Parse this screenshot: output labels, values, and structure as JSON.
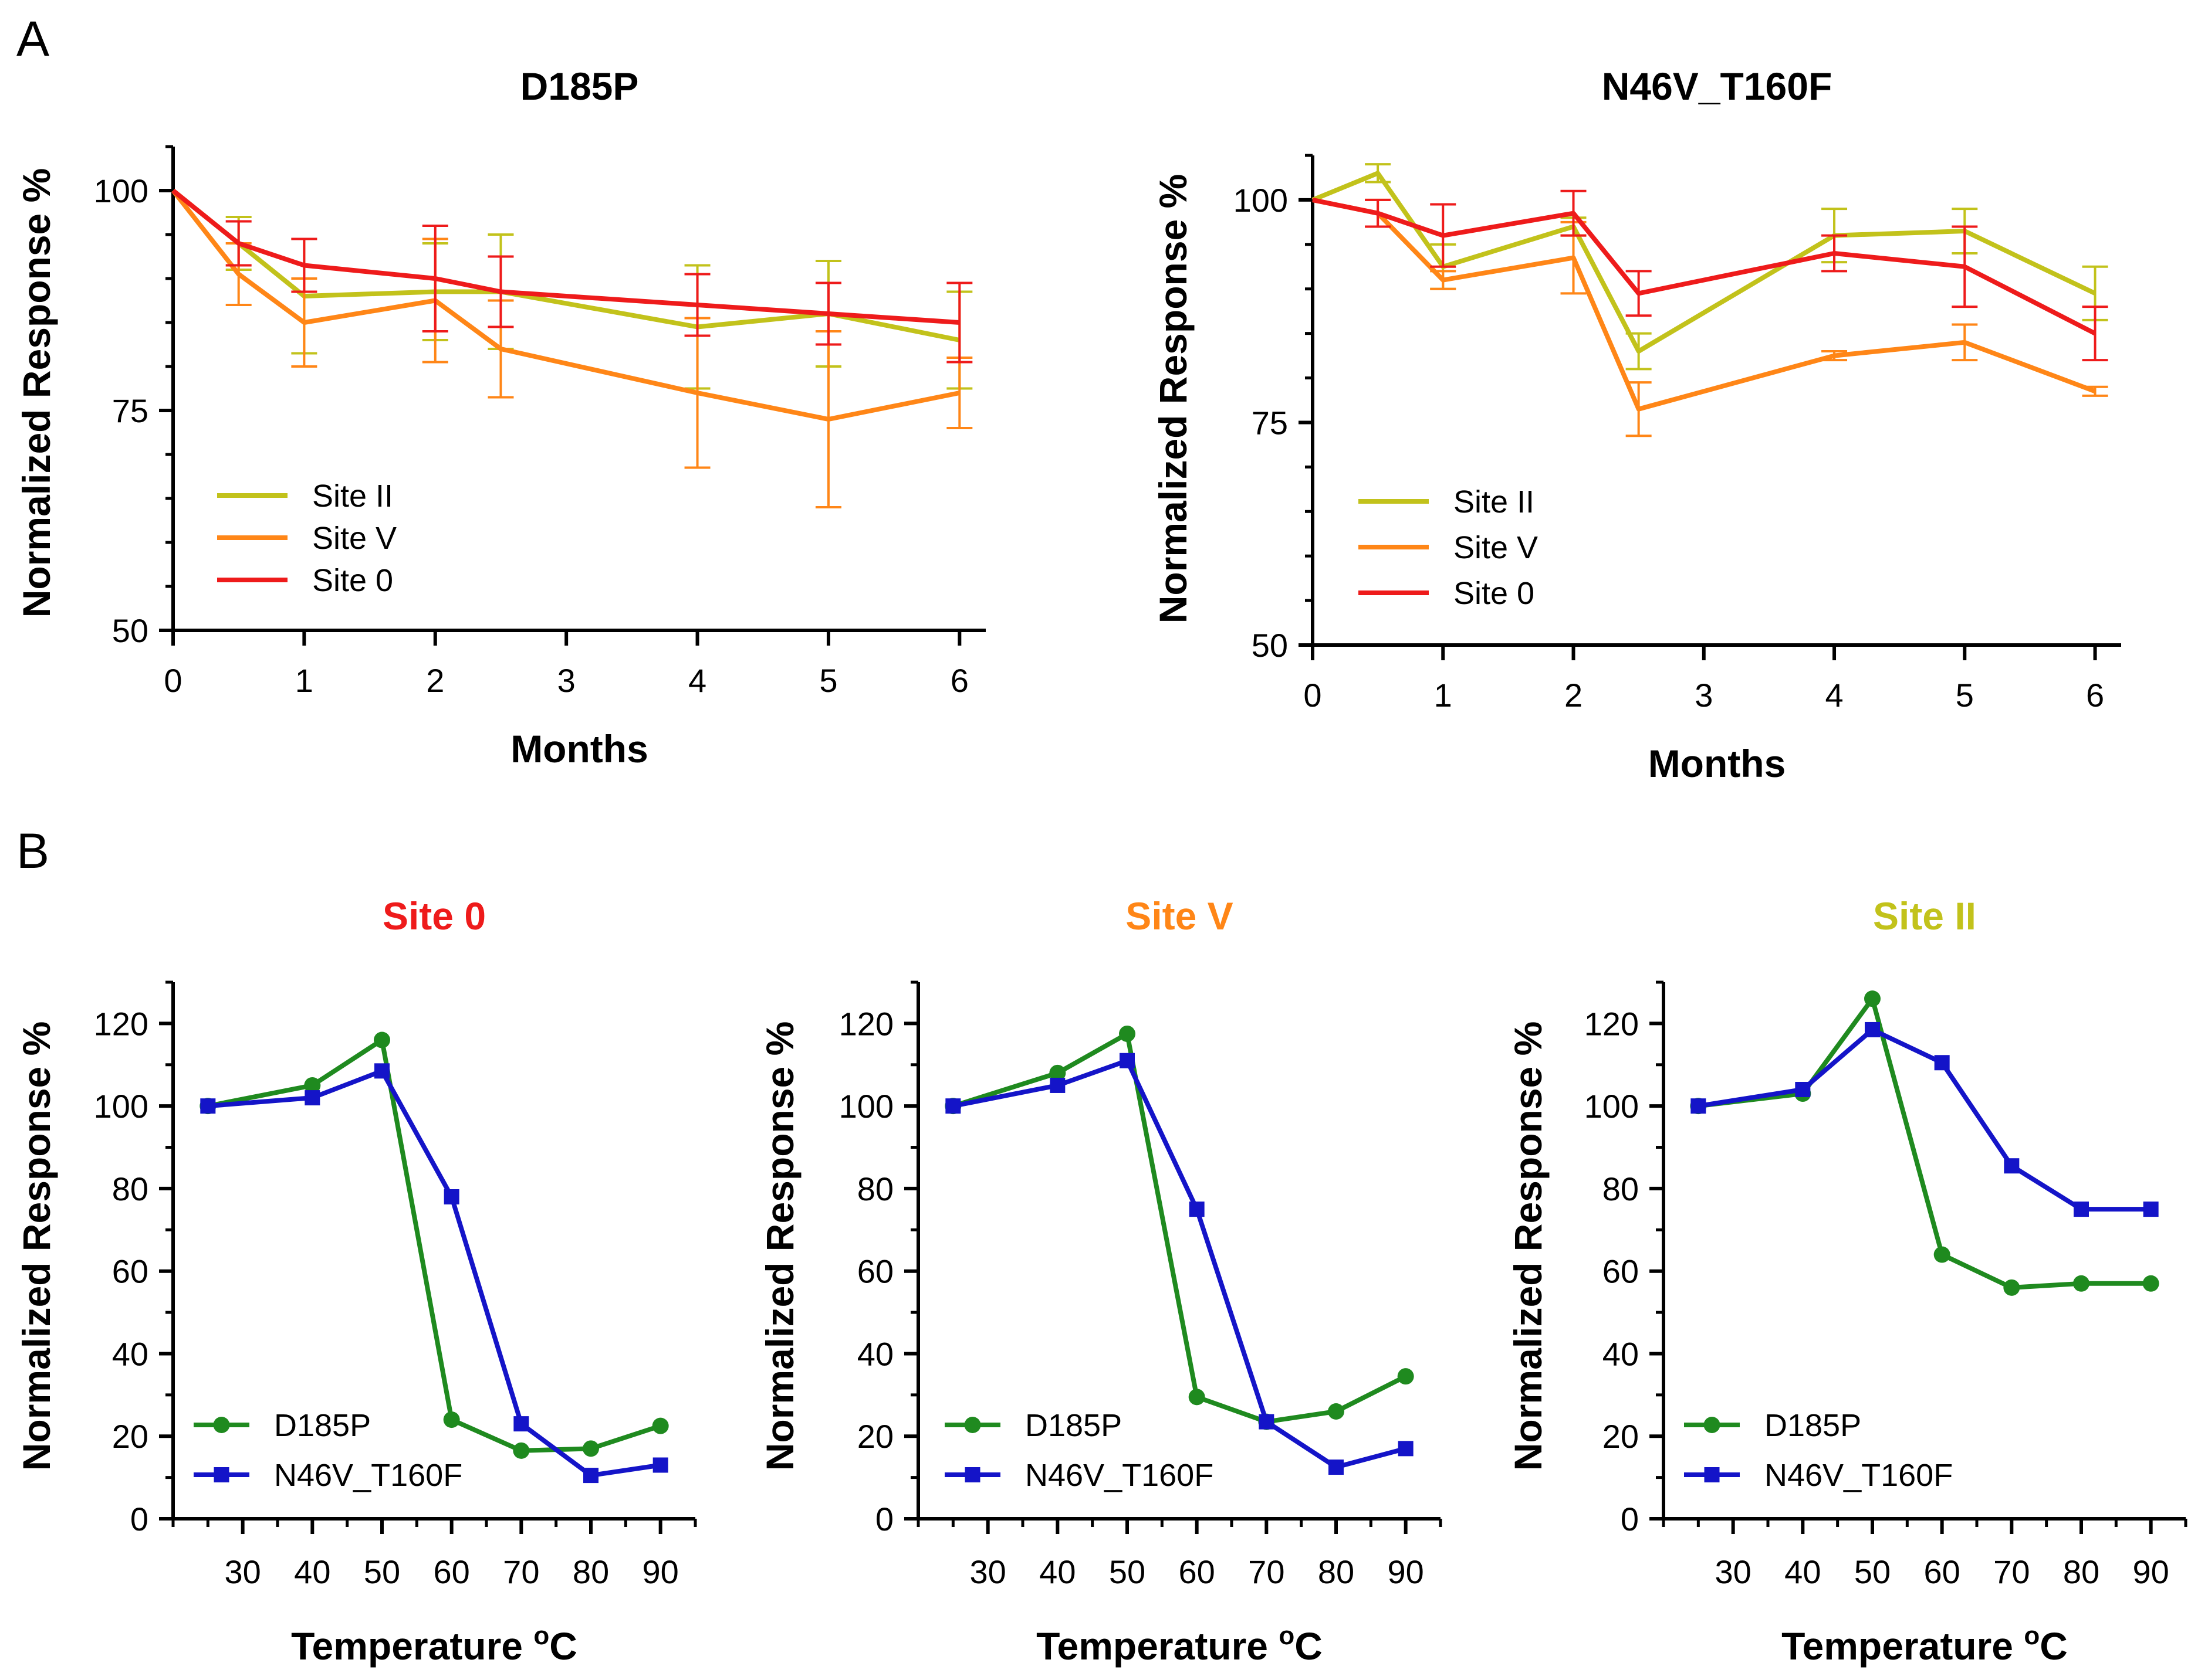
{
  "figure": {
    "panel_labels": [
      "A",
      "B"
    ]
  },
  "chart_data": [
    {
      "type": "line",
      "panel": "A",
      "title": "D185P",
      "xlabel": "Months",
      "ylabel": "Normalized Response %",
      "xlim": [
        0,
        6.2
      ],
      "ylim": [
        50,
        105
      ],
      "xticks": [
        0,
        1,
        2,
        3,
        4,
        5,
        6
      ],
      "yticks": [
        50,
        75,
        100
      ],
      "yminor_step": 5,
      "legend": "bottom-left",
      "series": [
        {
          "name": "Site II",
          "color": "#c2c21b",
          "x": [
            0,
            0.5,
            1,
            2,
            2.5,
            4,
            5,
            6
          ],
          "y": [
            100,
            94,
            88,
            88.5,
            88.5,
            84.5,
            86,
            83
          ],
          "err": [
            0,
            3,
            6.5,
            5.5,
            6.5,
            7,
            6,
            5.5
          ]
        },
        {
          "name": "Site V",
          "color": "#ff8617",
          "x": [
            0,
            0.5,
            1,
            2,
            2.5,
            4,
            5,
            6
          ],
          "y": [
            100,
            90.5,
            85,
            87.5,
            82,
            77,
            74,
            77
          ],
          "err": [
            0,
            3.5,
            5,
            7,
            5.5,
            8.5,
            10,
            4
          ]
        },
        {
          "name": "Site 0",
          "color": "#ee1b1b",
          "x": [
            0,
            0.5,
            1,
            2,
            2.5,
            4,
            5,
            6
          ],
          "y": [
            100,
            94,
            91.5,
            90,
            88.5,
            87,
            86,
            85
          ],
          "err": [
            0,
            2.5,
            3,
            6,
            4,
            3.5,
            3.5,
            4.5
          ]
        }
      ]
    },
    {
      "type": "line",
      "panel": "A",
      "title": "N46V_T160F",
      "xlabel": "Months",
      "ylabel": "Normalized Response %",
      "xlim": [
        0,
        6.2
      ],
      "ylim": [
        50,
        105
      ],
      "xticks": [
        0,
        1,
        2,
        3,
        4,
        5,
        6
      ],
      "yticks": [
        50,
        75,
        100
      ],
      "yminor_step": 5,
      "legend": "bottom-left",
      "series": [
        {
          "name": "Site II",
          "color": "#c2c21b",
          "x": [
            0,
            0.5,
            1,
            2,
            2.5,
            4,
            5,
            6
          ],
          "y": [
            100,
            103,
            92.5,
            97,
            83,
            96,
            96.5,
            89.5
          ],
          "err": [
            0,
            1,
            2.5,
            1,
            2,
            3,
            2.5,
            3
          ]
        },
        {
          "name": "Site V",
          "color": "#ff8617",
          "x": [
            0,
            0.5,
            1,
            2,
            2.5,
            4,
            5,
            6
          ],
          "y": [
            100,
            98.5,
            91,
            93.5,
            76.5,
            82.5,
            84,
            78.5
          ],
          "err": [
            0,
            1.5,
            1,
            4,
            3,
            0.5,
            2,
            0.5
          ]
        },
        {
          "name": "Site 0",
          "color": "#ee1b1b",
          "x": [
            0,
            0.5,
            1,
            2,
            2.5,
            4,
            5,
            6
          ],
          "y": [
            100,
            98.5,
            96,
            98.5,
            89.5,
            94,
            92.5,
            85
          ],
          "err": [
            0,
            1.5,
            3.5,
            2.5,
            2.5,
            2,
            4.5,
            3
          ]
        }
      ]
    },
    {
      "type": "line",
      "panel": "B",
      "title": "Site 0",
      "title_color": "#ee1b1b",
      "xlabel": "Temperature °C",
      "xlabel_main": "Temperature ",
      "xlabel_sup": "o",
      "xlabel_unit": "C",
      "ylabel": "Normalized Response %",
      "xlim": [
        20,
        95
      ],
      "ylim": [
        0,
        130
      ],
      "xticks": [
        30,
        40,
        50,
        60,
        70,
        80,
        90
      ],
      "yticks": [
        0,
        20,
        40,
        60,
        80,
        100,
        120
      ],
      "xminor_step": 5,
      "yminor_step": 10,
      "legend": "bottom-left",
      "series": [
        {
          "name": "D185P",
          "color": "#1f8a1f",
          "marker": "circle",
          "x": [
            25,
            40,
            50,
            60,
            70,
            80,
            90
          ],
          "y": [
            100,
            105,
            116,
            24,
            16.5,
            17,
            22.5
          ]
        },
        {
          "name": "N46V_T160F",
          "color": "#1414c8",
          "marker": "square",
          "x": [
            25,
            40,
            50,
            60,
            70,
            80,
            90
          ],
          "y": [
            100,
            102,
            108.5,
            78,
            23,
            10.5,
            13
          ]
        }
      ]
    },
    {
      "type": "line",
      "panel": "B",
      "title": "Site V",
      "title_color": "#ff8617",
      "xlabel": "Temperature °C",
      "xlabel_main": "Temperature ",
      "xlabel_sup": "o",
      "xlabel_unit": "C",
      "ylabel": "Normalized Response %",
      "xlim": [
        20,
        95
      ],
      "ylim": [
        0,
        130
      ],
      "xticks": [
        30,
        40,
        50,
        60,
        70,
        80,
        90
      ],
      "yticks": [
        0,
        20,
        40,
        60,
        80,
        100,
        120
      ],
      "xminor_step": 5,
      "yminor_step": 10,
      "legend": "bottom-left",
      "series": [
        {
          "name": "D185P",
          "color": "#1f8a1f",
          "marker": "circle",
          "x": [
            25,
            40,
            50,
            60,
            70,
            80,
            90
          ],
          "y": [
            100,
            108,
            117.5,
            29.5,
            23.5,
            26,
            34.5
          ]
        },
        {
          "name": "N46V_T160F",
          "color": "#1414c8",
          "marker": "square",
          "x": [
            25,
            40,
            50,
            60,
            70,
            80,
            90
          ],
          "y": [
            100,
            105,
            111,
            75,
            23.5,
            12.5,
            17
          ]
        }
      ]
    },
    {
      "type": "line",
      "panel": "B",
      "title": "Site II",
      "title_color": "#c2c21b",
      "xlabel": "Temperature °C",
      "xlabel_main": "Temperature ",
      "xlabel_sup": "o",
      "xlabel_unit": "C",
      "ylabel": "Normalized Response %",
      "xlim": [
        20,
        95
      ],
      "ylim": [
        0,
        130
      ],
      "xticks": [
        30,
        40,
        50,
        60,
        70,
        80,
        90
      ],
      "yticks": [
        0,
        20,
        40,
        60,
        80,
        100,
        120
      ],
      "xminor_step": 5,
      "yminor_step": 10,
      "legend": "bottom-left",
      "series": [
        {
          "name": "D185P",
          "color": "#1f8a1f",
          "marker": "circle",
          "x": [
            25,
            40,
            50,
            60,
            70,
            80,
            90
          ],
          "y": [
            100,
            103,
            126,
            64,
            56,
            57,
            57
          ]
        },
        {
          "name": "N46V_T160F",
          "color": "#1414c8",
          "marker": "square",
          "x": [
            25,
            40,
            50,
            60,
            70,
            80,
            90
          ],
          "y": [
            100,
            104,
            118.5,
            110.5,
            85.5,
            75,
            75
          ]
        }
      ]
    }
  ]
}
